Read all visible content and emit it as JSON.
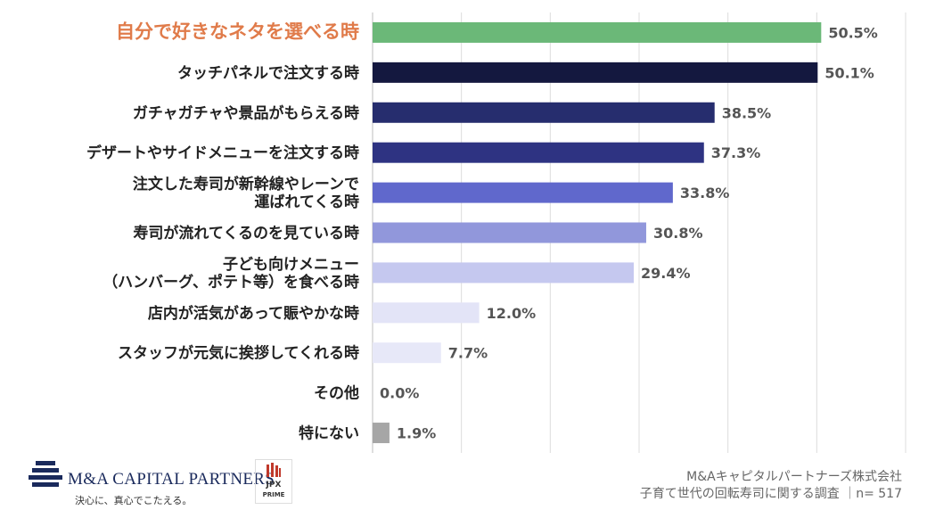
{
  "chart_data": {
    "type": "bar",
    "orientation": "horizontal",
    "categories": [
      [
        "自分で好きなネタを選べる時"
      ],
      [
        "タッチパネルで注文する時"
      ],
      [
        "ガチャガチャや景品がもらえる時"
      ],
      [
        "デザートやサイドメニューを注文する時"
      ],
      [
        "注文した寿司が新幹線やレーンで",
        "運ばれてくる時"
      ],
      [
        "寿司が流れてくるのを見ている時"
      ],
      [
        "子ども向けメニュー",
        "（ハンバーグ、ポテト等）を食べる時"
      ],
      [
        "店内が活気があって賑やかな時"
      ],
      [
        "スタッフが元気に挨拶してくれる時"
      ],
      [
        "その他"
      ],
      [
        "特にない"
      ]
    ],
    "values": [
      50.5,
      50.1,
      38.5,
      37.3,
      33.8,
      30.8,
      29.4,
      12.0,
      7.7,
      0.0,
      1.9
    ],
    "value_labels": [
      "50.5%",
      "50.1%",
      "38.5%",
      "37.3%",
      "33.8%",
      "30.8%",
      "29.4%",
      "12.0%",
      "7.7%",
      "0.0%",
      "1.9%"
    ],
    "bar_colors": [
      "#6BB878",
      "#14183F",
      "#262D6E",
      "#2E3382",
      "#6068CC",
      "#9197DB",
      "#C5C8EF",
      "#E3E4F7",
      "#E7E8F8",
      "#E7E8F8",
      "#A6A6A6"
    ],
    "highlight_index": 0,
    "highlight_color": "#E07B4A",
    "xlim": [
      0,
      60
    ],
    "grid": true,
    "gridline_values": [
      0,
      10,
      20,
      30,
      40,
      50,
      60
    ]
  },
  "footer": {
    "company_logo_text": "M&A CAPITAL PARTNERS",
    "company_tagline": "決心に、真心でこたえる。",
    "jpx_line1": "JPX",
    "jpx_line2": "PRIME",
    "source_line1": "M&Aキャピタルパートナーズ株式会社",
    "source_line2": "子育て世代の回転寿司に関する調査 ｜n= 517"
  }
}
